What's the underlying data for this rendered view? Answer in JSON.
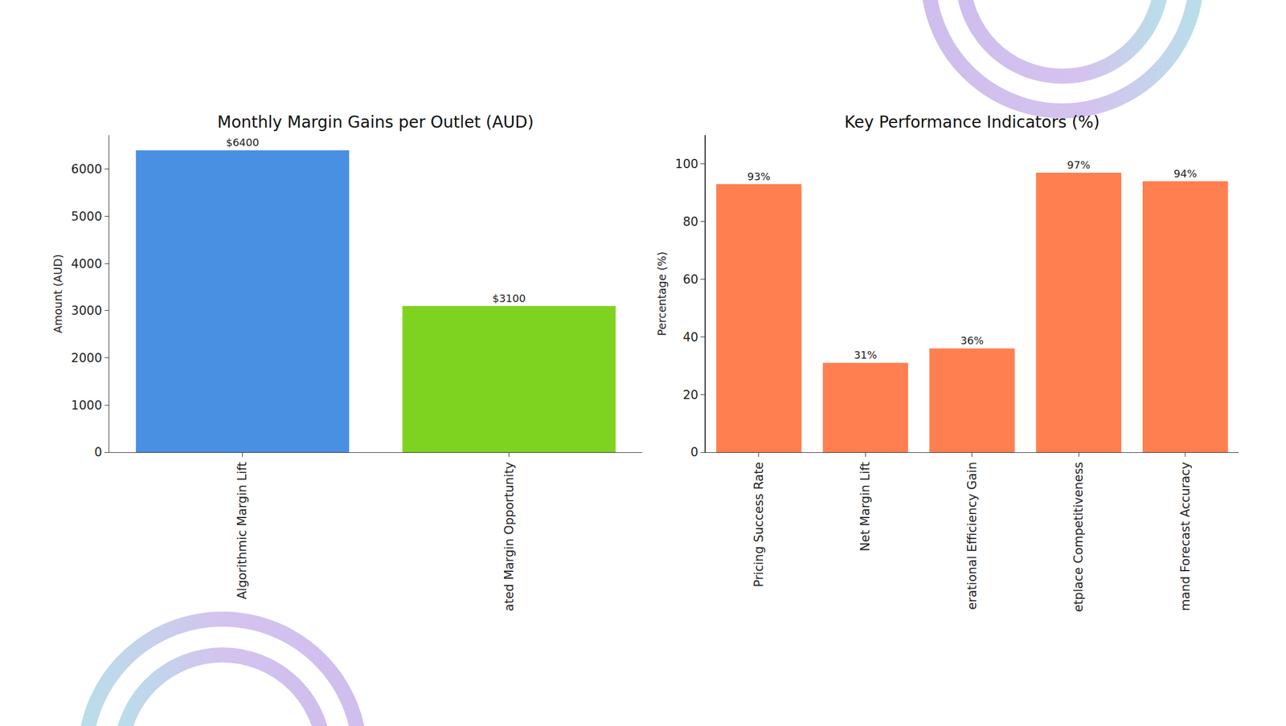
{
  "chart_data": [
    {
      "type": "bar",
      "title": "Monthly Margin Gains per Outlet (AUD)",
      "ylabel": "Amount (AUD)",
      "categories": [
        "Algorithmic Margin Lift",
        "ated Margin Opportunity"
      ],
      "values": [
        6400,
        3100
      ],
      "value_labels": [
        "$6400",
        "$3100"
      ],
      "colors": [
        "#4a90e2",
        "#7ed321"
      ],
      "ylim": [
        0,
        6720
      ],
      "yticks": [
        0,
        1000,
        2000,
        3000,
        4000,
        5000,
        6000
      ],
      "grid": false,
      "data_labels": true
    },
    {
      "type": "bar",
      "title": "Key Performance Indicators (%)",
      "ylabel": "Percentage (%)",
      "categories": [
        "Pricing Success Rate",
        "Net Margin Lift",
        "erational Efficiency Gain",
        "etplace Competitiveness",
        "mand Forecast Accuracy"
      ],
      "values": [
        93,
        31,
        36,
        97,
        94
      ],
      "value_labels": [
        "93%",
        "31%",
        "36%",
        "97%",
        "94%"
      ],
      "color": "#ff7f50",
      "ylim": [
        0,
        110
      ],
      "yticks": [
        0,
        20,
        40,
        60,
        80,
        100
      ],
      "grid": false,
      "data_labels": true
    }
  ]
}
